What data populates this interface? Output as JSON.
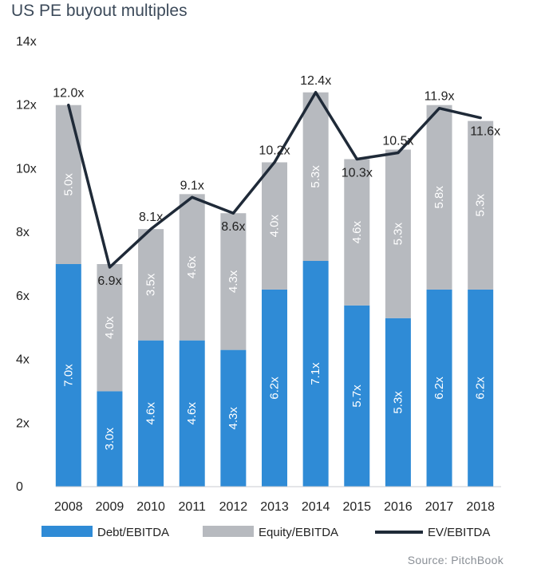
{
  "title": "US PE buyout multiples",
  "source": "Source: PitchBook",
  "colors": {
    "debt": "#2f8bd6",
    "equity": "#b7babf",
    "ev": "#1f2a38"
  },
  "chart_data": {
    "type": "bar",
    "stacked": true,
    "categories": [
      "2008",
      "2009",
      "2010",
      "2011",
      "2012",
      "2013",
      "2014",
      "2015",
      "2016",
      "2017",
      "2018"
    ],
    "series": [
      {
        "name": "Debt/EBITDA",
        "type": "bar",
        "values": [
          7.0,
          3.0,
          4.6,
          4.6,
          4.3,
          6.2,
          7.1,
          5.7,
          5.3,
          6.2,
          6.2
        ],
        "labels": [
          "7.0x",
          "3.0x",
          "4.6x",
          "4.6x",
          "4.3x",
          "6.2x",
          "7.1x",
          "5.7x",
          "5.3x",
          "6.2x",
          "6.2x"
        ]
      },
      {
        "name": "Equity/EBITDA",
        "type": "bar",
        "values": [
          5.0,
          4.0,
          3.5,
          4.6,
          4.3,
          4.0,
          5.3,
          4.6,
          5.3,
          5.8,
          5.3
        ],
        "labels": [
          "5.0x",
          "4.0x",
          "3.5x",
          "4.6x",
          "4.3x",
          "4.0x",
          "5.3x",
          "4.6x",
          "5.3x",
          "5.8x",
          "5.3x"
        ]
      },
      {
        "name": "EV/EBITDA",
        "type": "line",
        "values": [
          12.0,
          6.9,
          8.1,
          9.1,
          8.6,
          10.2,
          12.4,
          10.3,
          10.5,
          11.9,
          11.6
        ],
        "labels": [
          "12.0x",
          "6.9x",
          "8.1x",
          "9.1x",
          "8.6x",
          "10.2x",
          "12.4x",
          "10.3x",
          "10.5x",
          "11.9x",
          "11.6x"
        ]
      }
    ],
    "ylim": [
      0,
      14
    ],
    "yticks": [
      0,
      2,
      4,
      6,
      8,
      10,
      12,
      14
    ],
    "ytick_labels": [
      "0",
      "2x",
      "4x",
      "6x",
      "8x",
      "10x",
      "12x",
      "14x"
    ],
    "grid": false,
    "legend": "bottom"
  }
}
